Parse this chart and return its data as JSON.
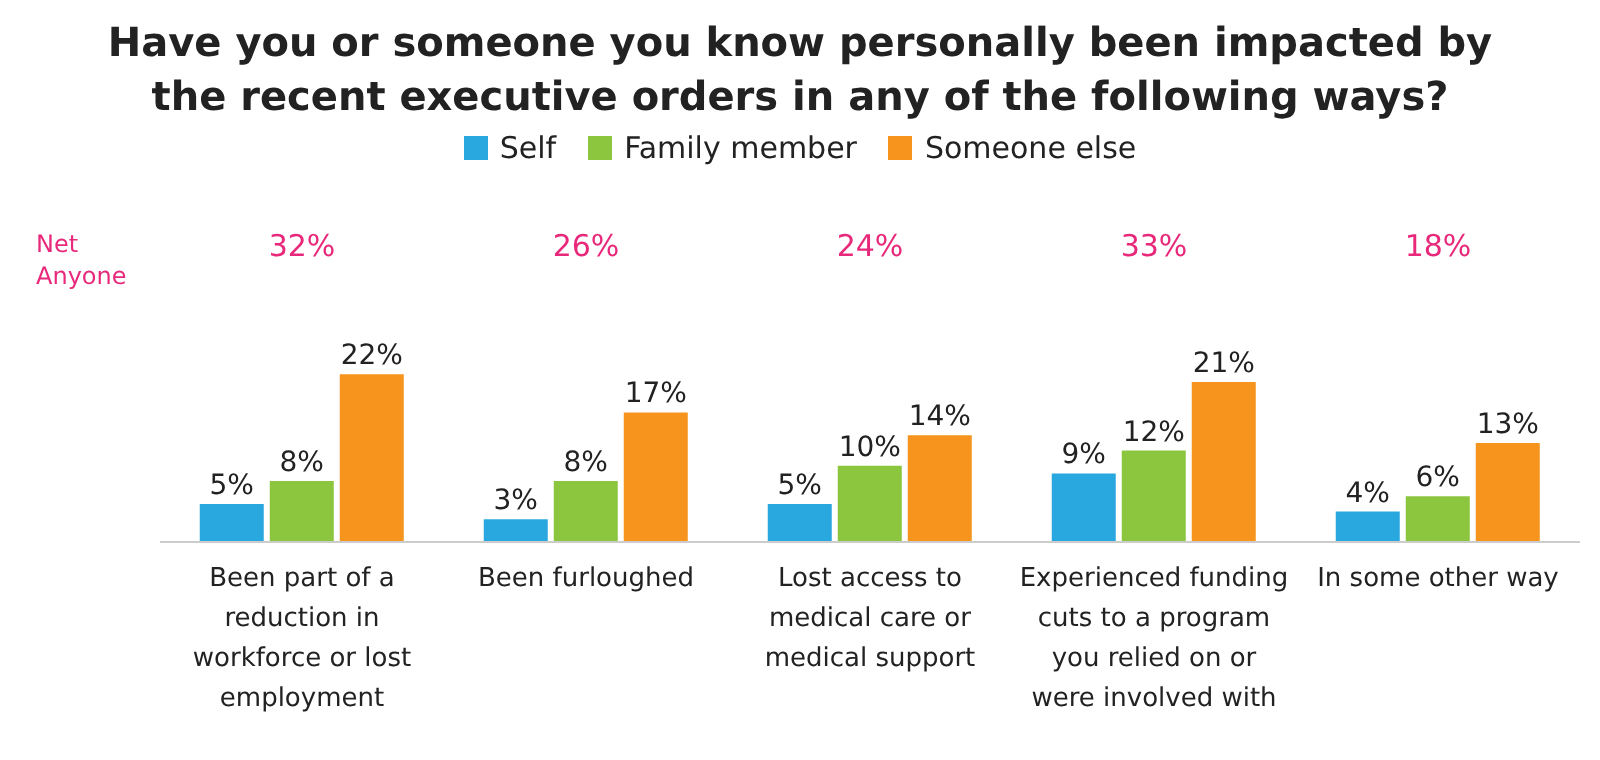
{
  "chart_data": {
    "type": "bar",
    "title": "Have you or someone you know personally been impacted by the recent executive orders in any of the following ways?",
    "categories": [
      "Been part of a reduction in workforce or lost employment",
      "Been furloughed",
      "Lost access to medical care or medical support",
      "Experienced funding cuts to a program you relied on or were involved with",
      "In some other way"
    ],
    "series": [
      {
        "name": "Self",
        "color": "#29a8e0",
        "values": [
          5,
          3,
          5,
          9,
          4
        ],
        "value_labels": [
          "5%",
          "3%",
          "5%",
          "9%",
          "4%"
        ]
      },
      {
        "name": "Family member",
        "color": "#8cc63f",
        "values": [
          8,
          8,
          10,
          12,
          6
        ],
        "value_labels": [
          "8%",
          "8%",
          "10%",
          "12%",
          "6%"
        ]
      },
      {
        "name": "Someone else",
        "color": "#f7941d",
        "values": [
          22,
          17,
          14,
          21,
          13
        ],
        "value_labels": [
          "22%",
          "17%",
          "14%",
          "21%",
          "13%"
        ]
      }
    ],
    "legend": "top",
    "grid": false,
    "annotations": [
      "Net Anyone",
      "32%",
      "26%",
      "24%",
      "33%",
      "18%"
    ]
  }
}
